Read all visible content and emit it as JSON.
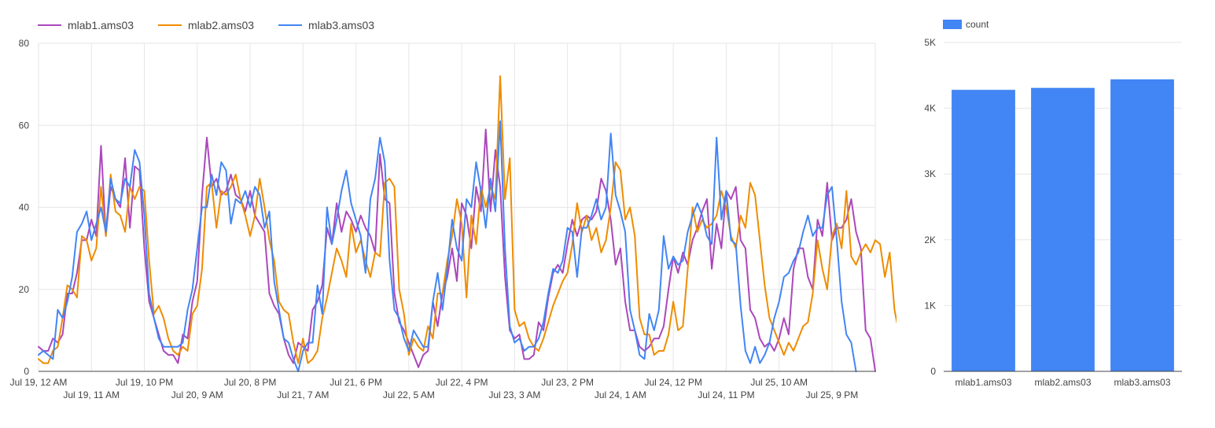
{
  "chart_data": [
    {
      "type": "line",
      "title": "",
      "xlabel": "",
      "ylabel": "",
      "ylim": [
        0,
        80
      ],
      "yticks": [
        0,
        20,
        40,
        60,
        80
      ],
      "grid": true,
      "legend_position": "top-left",
      "x_start": "Jul 19, 12 AM",
      "x_step_hours": 1,
      "x_tick_labels": [
        {
          "index": 0,
          "label": "Jul 19, 12 AM"
        },
        {
          "index": 11,
          "label": "Jul 19, 11 AM"
        },
        {
          "index": 22,
          "label": "Jul 19, 10 PM"
        },
        {
          "index": 33,
          "label": "Jul 20, 9 AM"
        },
        {
          "index": 44,
          "label": "Jul 20, 8 PM"
        },
        {
          "index": 55,
          "label": "Jul 21, 7 AM"
        },
        {
          "index": 66,
          "label": "Jul 21, 6 PM"
        },
        {
          "index": 77,
          "label": "Jul 22, 5 AM"
        },
        {
          "index": 88,
          "label": "Jul 22, 4 PM"
        },
        {
          "index": 99,
          "label": "Jul 23, 3 AM"
        },
        {
          "index": 110,
          "label": "Jul 23, 2 PM"
        },
        {
          "index": 121,
          "label": "Jul 24, 1 AM"
        },
        {
          "index": 132,
          "label": "Jul 24, 12 PM"
        },
        {
          "index": 143,
          "label": "Jul 24, 11 PM"
        },
        {
          "index": 154,
          "label": "Jul 25, 10 AM"
        },
        {
          "index": 165,
          "label": "Jul 25, 9 PM"
        }
      ],
      "series": [
        {
          "name": "mlab1.ams03",
          "color": "#ab47bc",
          "values": [
            6,
            5,
            5,
            8,
            7,
            9,
            19,
            19,
            24,
            32,
            32,
            37,
            33,
            55,
            33,
            45,
            42,
            40,
            52,
            35,
            50,
            49,
            30,
            17,
            13,
            9,
            5,
            4,
            4,
            2,
            9,
            8,
            17,
            22,
            43,
            57,
            45,
            47,
            43,
            44,
            48,
            43,
            42,
            39,
            44,
            38,
            36,
            34,
            19,
            16,
            14,
            8,
            4,
            2,
            7,
            6,
            5,
            15,
            17,
            21,
            35,
            31,
            41,
            34,
            39,
            37,
            34,
            38,
            35,
            33,
            29,
            53,
            42,
            41,
            19,
            12,
            10,
            7,
            4,
            1,
            4,
            5,
            17,
            11,
            19,
            23,
            30,
            22,
            41,
            38,
            30,
            45,
            39,
            59,
            39,
            54,
            45,
            23,
            10,
            8,
            9,
            3,
            3,
            4,
            12,
            10,
            18,
            24,
            26,
            24,
            31,
            37,
            33,
            37,
            38,
            37,
            39,
            47,
            44,
            37,
            26,
            30,
            17,
            10,
            10,
            6,
            5,
            6,
            8,
            8,
            11,
            20,
            28,
            24,
            29,
            26,
            32,
            35,
            39,
            42,
            25,
            36,
            30,
            44,
            42,
            45,
            32,
            30,
            15,
            13,
            8,
            6,
            7,
            5,
            8,
            13,
            9,
            25,
            30,
            30,
            23,
            20,
            37,
            33,
            46,
            32,
            35,
            35,
            37,
            42,
            34,
            30,
            10,
            8,
            0
          ]
        },
        {
          "name": "mlab2.ams03",
          "color": "#ef8c00",
          "values": [
            3,
            2,
            2,
            5,
            6,
            13,
            21,
            20,
            18,
            33,
            32,
            27,
            30,
            45,
            33,
            48,
            39,
            38,
            34,
            45,
            42,
            45,
            44,
            27,
            14,
            16,
            13,
            8,
            5,
            4,
            6,
            5,
            14,
            16,
            25,
            45,
            46,
            35,
            44,
            43,
            45,
            48,
            42,
            38,
            33,
            38,
            47,
            40,
            32,
            27,
            17,
            15,
            14,
            7,
            2,
            8,
            2,
            3,
            5,
            13,
            18,
            24,
            30,
            27,
            23,
            36,
            29,
            32,
            27,
            23,
            29,
            28,
            46,
            47,
            45,
            20,
            14,
            4,
            8,
            6,
            5,
            11,
            8,
            19,
            19,
            27,
            33,
            42,
            36,
            18,
            38,
            31,
            45,
            40,
            45,
            42,
            72,
            42,
            52,
            15,
            11,
            12,
            8,
            6,
            5,
            8,
            12,
            16,
            19,
            22,
            24,
            31,
            41,
            34,
            38,
            32,
            35,
            29,
            32,
            40,
            51,
            49,
            37,
            40,
            33,
            13,
            9,
            9,
            4,
            5,
            5,
            9,
            17,
            10,
            11,
            25,
            40,
            34,
            37,
            35,
            36,
            38,
            44,
            40,
            33,
            30,
            38,
            35,
            46,
            43,
            32,
            21,
            13,
            10,
            7,
            4,
            7,
            5,
            8,
            11,
            12,
            19,
            32,
            25,
            20,
            33,
            36,
            30,
            44,
            28,
            26,
            29,
            31,
            29,
            32,
            31,
            23,
            29,
            15,
            9,
            0
          ]
        },
        {
          "name": "mlab3.ams03",
          "color": "#4285f4",
          "values": [
            4,
            5,
            4,
            3,
            15,
            13,
            17,
            23,
            34,
            36,
            39,
            32,
            36,
            40,
            34,
            47,
            42,
            41,
            47,
            45,
            54,
            51,
            38,
            19,
            13,
            8,
            6,
            6,
            6,
            6,
            7,
            15,
            20,
            30,
            40,
            40,
            48,
            43,
            51,
            49,
            36,
            42,
            41,
            44,
            40,
            45,
            43,
            35,
            39,
            22,
            15,
            8,
            7,
            3,
            0,
            5,
            7,
            7,
            21,
            14,
            40,
            31,
            37,
            44,
            49,
            41,
            37,
            33,
            24,
            42,
            47,
            57,
            51,
            27,
            15,
            13,
            8,
            5,
            10,
            8,
            6,
            6,
            17,
            24,
            15,
            25,
            37,
            30,
            27,
            42,
            40,
            51,
            44,
            35,
            47,
            39,
            61,
            30,
            11,
            7,
            8,
            5,
            6,
            6,
            8,
            12,
            19,
            25,
            24,
            27,
            35,
            34,
            23,
            35,
            35,
            38,
            42,
            37,
            40,
            58,
            43,
            39,
            34,
            15,
            10,
            4,
            3,
            14,
            10,
            15,
            33,
            25,
            28,
            26,
            27,
            34,
            38,
            41,
            38,
            33,
            31,
            57,
            37,
            44,
            32,
            31,
            16,
            5,
            2,
            6,
            2,
            4,
            7,
            13,
            17,
            23,
            24,
            27,
            29,
            34,
            38,
            33,
            35,
            35,
            43,
            45,
            32,
            17,
            9,
            7,
            0
          ]
        }
      ]
    },
    {
      "type": "bar",
      "title": "",
      "xlabel": "",
      "ylabel": "",
      "ylim": [
        0,
        5000
      ],
      "yticks": [
        0,
        1000,
        2000,
        3000,
        4000,
        5000
      ],
      "ytick_labels": [
        "0",
        "1K",
        "2K",
        "3K",
        "4K",
        "5K"
      ],
      "grid": true,
      "legend_position": "top-left",
      "categories": [
        "mlab1.ams03",
        "mlab2.ams03",
        "mlab3.ams03"
      ],
      "series": [
        {
          "name": "count",
          "color": "#4285f4",
          "values": [
            4280,
            4310,
            4440
          ]
        }
      ]
    }
  ]
}
